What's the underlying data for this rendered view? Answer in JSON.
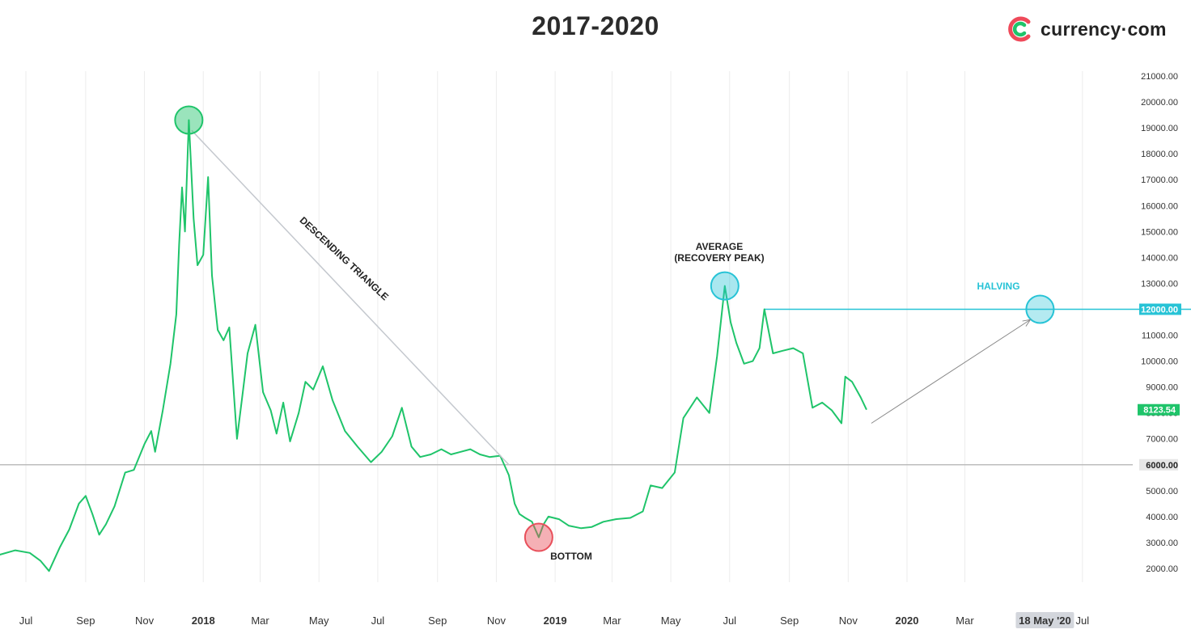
{
  "brand": {
    "name": "currency·com"
  },
  "chart_data": {
    "type": "line",
    "title": "2017-2020",
    "xlabel": "",
    "ylabel": "",
    "x_ticks": [
      "Jul",
      "Sep",
      "Nov",
      "2018",
      "Mar",
      "May",
      "Jul",
      "Sep",
      "Nov",
      "2019",
      "Mar",
      "May",
      "Jul",
      "Sep",
      "Nov",
      "2020",
      "Mar",
      "18 May '20",
      "Jul"
    ],
    "y_ticks": [
      "21000.00",
      "20000.00",
      "19000.00",
      "18000.00",
      "17000.00",
      "16000.00",
      "15000.00",
      "14000.00",
      "13000.00",
      "12000.00",
      "11000.00",
      "10000.00",
      "9000.00",
      "8000.00",
      "7000.00",
      "6000.00",
      "5000.00",
      "4000.00",
      "3000.00",
      "2000.00"
    ],
    "ylim": [
      1500,
      21200
    ],
    "xlim": [
      "2017-06-01",
      "2020-07-31"
    ],
    "grid": true,
    "series": [
      {
        "color": "#1fc46a",
        "x": [
          "2017-06-01",
          "2017-06-20",
          "2017-07-05",
          "2017-07-16",
          "2017-07-25",
          "2017-08-05",
          "2017-08-15",
          "2017-08-25",
          "2017-09-01",
          "2017-09-08",
          "2017-09-15",
          "2017-09-22",
          "2017-10-01",
          "2017-10-12",
          "2017-10-21",
          "2017-11-01",
          "2017-11-08",
          "2017-11-12",
          "2017-11-20",
          "2017-11-28",
          "2017-12-04",
          "2017-12-07",
          "2017-12-10",
          "2017-12-13",
          "2017-12-17",
          "2017-12-22",
          "2017-12-26",
          "2018-01-01",
          "2018-01-06",
          "2018-01-10",
          "2018-01-16",
          "2018-01-22",
          "2018-01-28",
          "2018-02-05",
          "2018-02-10",
          "2018-02-16",
          "2018-02-24",
          "2018-03-04",
          "2018-03-12",
          "2018-03-18",
          "2018-03-25",
          "2018-04-01",
          "2018-04-10",
          "2018-04-17",
          "2018-04-25",
          "2018-05-05",
          "2018-05-15",
          "2018-05-28",
          "2018-06-10",
          "2018-06-24",
          "2018-07-05",
          "2018-07-16",
          "2018-07-26",
          "2018-08-05",
          "2018-08-14",
          "2018-08-25",
          "2018-09-05",
          "2018-09-15",
          "2018-09-25",
          "2018-10-05",
          "2018-10-15",
          "2018-10-25",
          "2018-11-05",
          "2018-11-14",
          "2018-11-20",
          "2018-11-25",
          "2018-12-01",
          "2018-12-08",
          "2018-12-15",
          "2018-12-20",
          "2018-12-25",
          "2019-01-05",
          "2019-01-15",
          "2019-01-28",
          "2019-02-08",
          "2019-02-20",
          "2019-03-05",
          "2019-03-20",
          "2019-04-02",
          "2019-04-10",
          "2019-04-22",
          "2019-05-05",
          "2019-05-14",
          "2019-05-28",
          "2019-06-10",
          "2019-06-18",
          "2019-06-26",
          "2019-07-02",
          "2019-07-08",
          "2019-07-16",
          "2019-07-25",
          "2019-08-01",
          "2019-08-06",
          "2019-08-15",
          "2019-08-25",
          "2019-09-05",
          "2019-09-15",
          "2019-09-25",
          "2019-10-05",
          "2019-10-15",
          "2019-10-25",
          "2019-10-29",
          "2019-11-05",
          "2019-11-14",
          "2019-11-20"
        ],
        "values": [
          2500,
          2700,
          2600,
          2300,
          1900,
          2800,
          3500,
          4500,
          4800,
          4100,
          3300,
          3700,
          4400,
          5700,
          5800,
          6800,
          7300,
          6500,
          8100,
          9900,
          11800,
          14500,
          16700,
          15000,
          19300,
          15500,
          13700,
          14100,
          17100,
          13300,
          11200,
          10800,
          11300,
          7000,
          8500,
          10300,
          11400,
          8800,
          8100,
          7200,
          8400,
          6900,
          8000,
          9200,
          8900,
          9800,
          8500,
          7300,
          6700,
          6100,
          6500,
          7100,
          8200,
          6700,
          6300,
          6400,
          6600,
          6400,
          6500,
          6600,
          6400,
          6300,
          6350,
          5600,
          4500,
          4100,
          3950,
          3800,
          3200,
          3700,
          4000,
          3900,
          3650,
          3550,
          3600,
          3800,
          3900,
          3950,
          4200,
          5200,
          5100,
          5700,
          7800,
          8600,
          8000,
          10200,
          12900,
          11500,
          10700,
          9900,
          10000,
          10500,
          12000,
          10300,
          10400,
          10500,
          10300,
          8200,
          8400,
          8100,
          7600,
          9400,
          9200,
          8600,
          8123.54
        ]
      }
    ],
    "last_value_label": "8123.54",
    "last_value": 8123.54,
    "levels": [
      {
        "value": 6000,
        "label": "6000.00",
        "color": "#bdbdbd"
      },
      {
        "value": 12000,
        "label": "12000.00",
        "color": "#27c3d6"
      }
    ],
    "annotations": [
      {
        "text": "DESCENDING TRIANGLE",
        "color": "#222222"
      },
      {
        "text": "AVERAGE",
        "color": "#222222"
      },
      {
        "text": "(RECOVERY PEAK)",
        "color": "#222222"
      },
      {
        "text": "BOTTOM",
        "color": "#222222"
      },
      {
        "text": "HALVING",
        "color": "#27c3d6"
      }
    ],
    "markers": [
      {
        "name": "peak",
        "x": "2017-12-17",
        "y": 19300,
        "color": "#1fc46a"
      },
      {
        "name": "bottom",
        "x": "2018-12-15",
        "y": 3200,
        "color": "#e8505b"
      },
      {
        "name": "recovery-peak",
        "x": "2019-06-26",
        "y": 12900,
        "color": "#27c3d6"
      },
      {
        "name": "halving",
        "x": "2020-05-18",
        "y": 12000,
        "color": "#27c3d6"
      }
    ]
  }
}
